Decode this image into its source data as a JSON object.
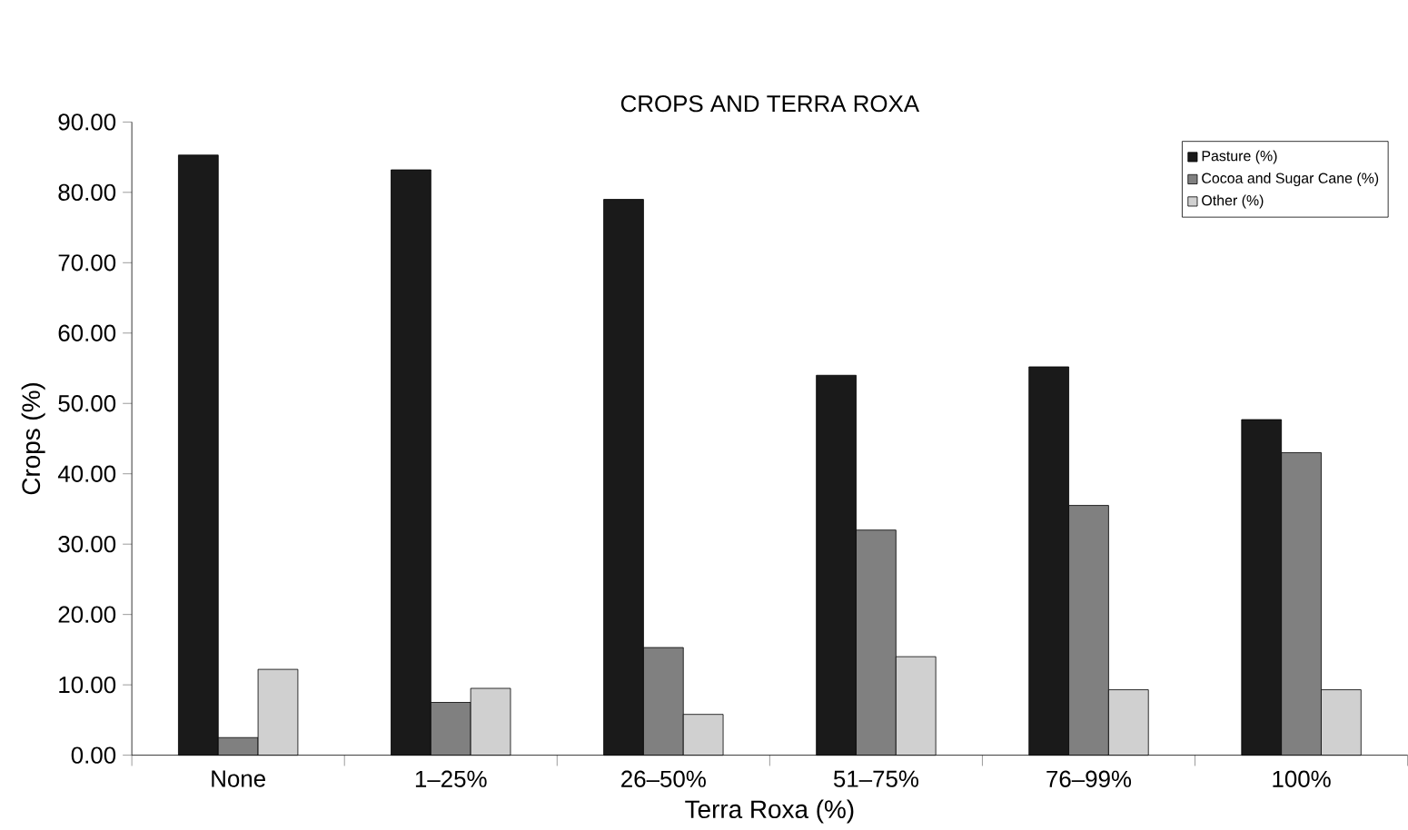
{
  "chart_data": {
    "type": "bar",
    "title": "CROPS AND TERRA ROXA",
    "xlabel": "Terra Roxa (%)",
    "ylabel": "Crops (%)",
    "categories": [
      "None",
      "1–25%",
      "26–50%",
      "51–75%",
      "76–99%",
      "100%"
    ],
    "series": [
      {
        "name": "Pasture (%)",
        "color": "#1a1a1a",
        "values": [
          85.3,
          83.2,
          79.0,
          54.0,
          55.2,
          47.7
        ]
      },
      {
        "name": "Cocoa and Sugar Cane (%)",
        "color": "#808080",
        "values": [
          2.5,
          7.5,
          15.3,
          32.0,
          35.5,
          43.0
        ]
      },
      {
        "name": "Other (%)",
        "color": "#d0d0d0",
        "values": [
          12.2,
          9.5,
          5.8,
          14.0,
          9.3,
          9.3
        ]
      }
    ],
    "ylim": [
      0,
      90
    ],
    "yticks": [
      {
        "value": 0,
        "label": "0.00"
      },
      {
        "value": 10,
        "label": "10.00"
      },
      {
        "value": 20,
        "label": "20.00"
      },
      {
        "value": 30,
        "label": "30.00"
      },
      {
        "value": 40,
        "label": "40.00"
      },
      {
        "value": 50,
        "label": "50.00"
      },
      {
        "value": 60,
        "label": "60.00"
      },
      {
        "value": 70,
        "label": "70.00"
      },
      {
        "value": 80,
        "label": "80.00"
      },
      {
        "value": 90,
        "label": "90.00"
      }
    ],
    "grid": false,
    "legend": "top right"
  }
}
